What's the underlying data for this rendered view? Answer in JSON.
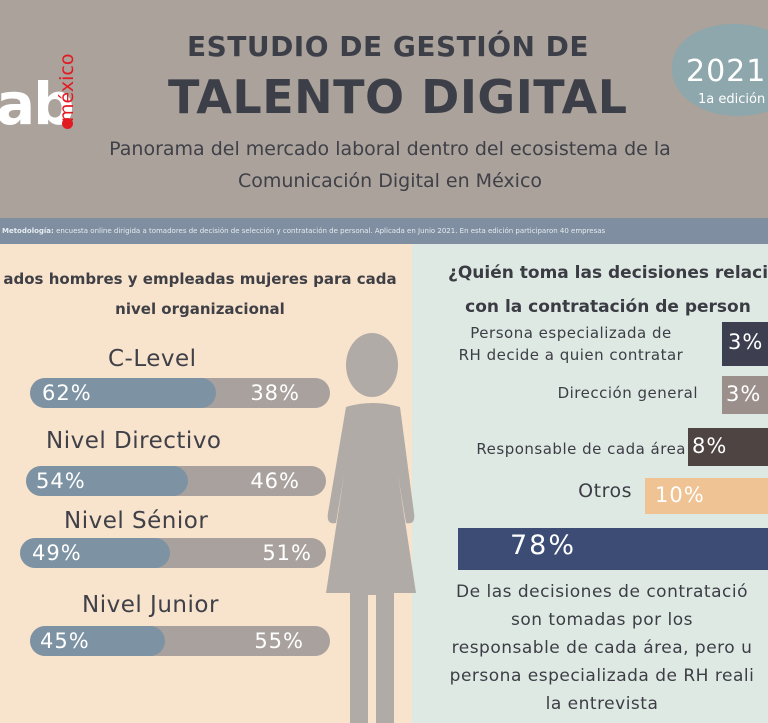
{
  "header": {
    "logo_text": "ab",
    "logo_suffix": "méxico",
    "title_line1": "ESTUDIO DE GESTIÓN DE",
    "title_line2": "TALENTO DIGITAL",
    "subtitle_line1": "Panorama del mercado laboral dentro del ecosistema de la",
    "subtitle_line2": "Comunicación Digital en México",
    "badge_year": "2021",
    "badge_edition": "1a edición"
  },
  "methodology": {
    "label": "Metodología:",
    "text": " encuesta online dirigida a tomadores de decisión de selección y contratación de personal. Aplicada en Junio 2021. En esta edición participaron 40 empresas"
  },
  "colors": {
    "men": "#7d93a3",
    "women": "#a9a19d",
    "rh": "#3d3f51",
    "direccion": "#9b8f8c",
    "responsable": "#4e4542",
    "otros": "#efc394",
    "main_bar": "#3c4c75"
  },
  "chart_data": [
    {
      "type": "bar",
      "title_line1": "ados hombres y empleadas mujeres para cada",
      "title_line2": "nivel organizacional",
      "categories": [
        "C-Level",
        "Nivel Directivo",
        "Nivel Sénior",
        "Nivel Junior"
      ],
      "series": [
        {
          "values": [
            62,
            54,
            49,
            45
          ],
          "labels": [
            "62%",
            "54%",
            "49%",
            "45%"
          ]
        },
        {
          "values": [
            38,
            46,
            51,
            55
          ],
          "labels": [
            "38%",
            "46%",
            "51%",
            "55%"
          ]
        }
      ],
      "stacked": true,
      "ylim": [
        0,
        100
      ]
    },
    {
      "type": "bar",
      "title_line1": "¿Quién toma las decisiones relaci",
      "title_line2": "con la contratación de person",
      "categories": [
        [
          "Persona especializada de",
          "RH decide a quien contratar"
        ],
        [
          "Dirección general"
        ],
        [
          "Responsable de cada área"
        ],
        [
          "Otros"
        ]
      ],
      "values": [
        3,
        3,
        8,
        10
      ],
      "labels": [
        "3%",
        "3%",
        "8%",
        "10%"
      ],
      "highlight": {
        "value": 78,
        "label": "78%"
      }
    }
  ],
  "footnote": [
    "De las decisiones de contratació",
    "son tomadas por los",
    "responsable de cada área, pero u",
    "persona especializada de RH reali",
    "la entrevista"
  ]
}
